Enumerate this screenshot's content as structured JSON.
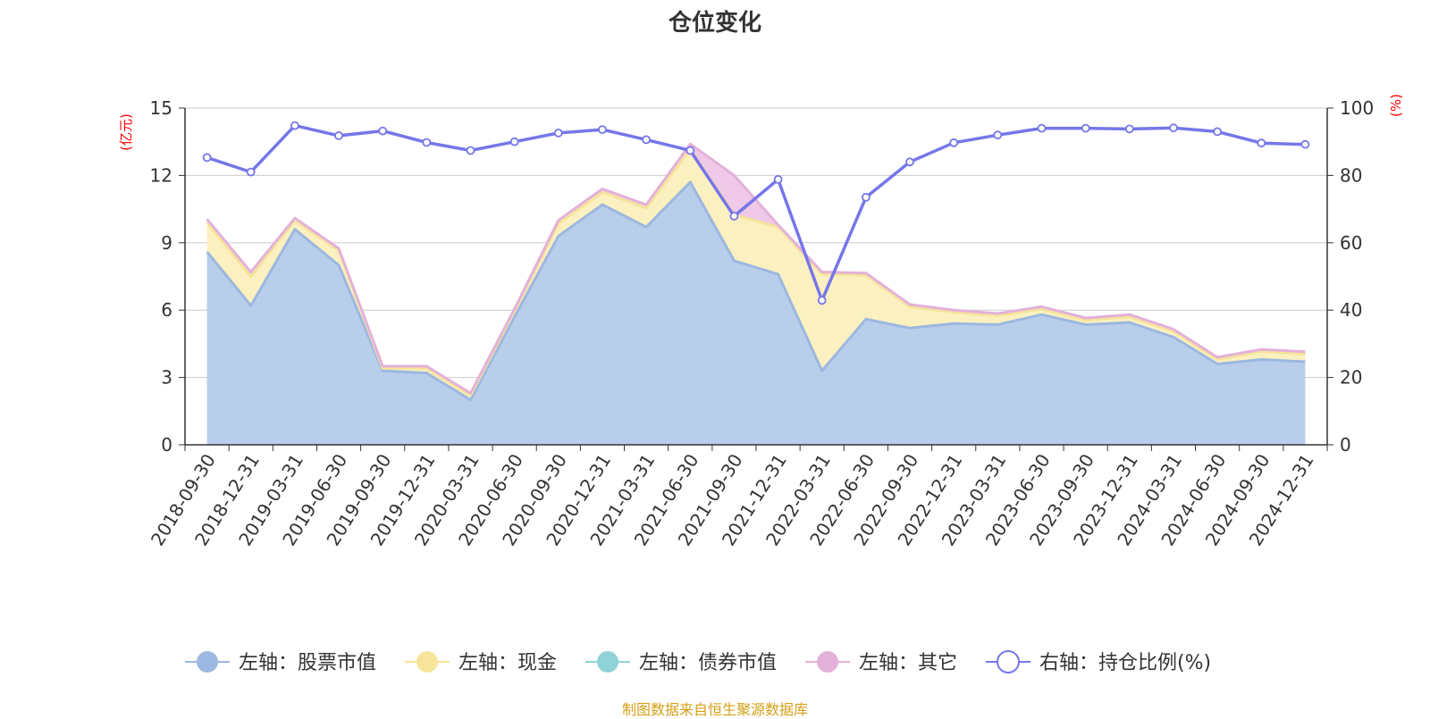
{
  "chart_data": {
    "type": "area",
    "title": "仓位变化",
    "ylabel_left": "(亿元)",
    "ylabel_right": "(%)",
    "ylim_left": [
      0,
      15
    ],
    "yticks_left": [
      0,
      3,
      6,
      9,
      12,
      15
    ],
    "ylim_right": [
      0,
      100
    ],
    "yticks_right": [
      0,
      20,
      40,
      60,
      80,
      100
    ],
    "grid": true,
    "legend_position": "bottom",
    "categories": [
      "2018-09-30",
      "2018-12-31",
      "2019-03-31",
      "2019-06-30",
      "2019-09-30",
      "2019-12-31",
      "2020-03-31",
      "2020-06-30",
      "2020-09-30",
      "2020-12-31",
      "2021-03-31",
      "2021-06-30",
      "2021-09-30",
      "2021-12-31",
      "2022-03-31",
      "2022-06-30",
      "2022-09-30",
      "2022-12-31",
      "2023-03-31",
      "2023-06-30",
      "2023-09-30",
      "2023-12-31",
      "2024-03-31",
      "2024-06-30",
      "2024-09-30",
      "2024-12-31"
    ],
    "x_tick_labels": [
      "2018-09-30",
      "2018-12-31",
      "2019-03-31",
      "2019-06-30",
      "2019-09-30",
      "2019-12-31",
      "2020-03-31",
      "2020-06-30",
      "2020-09-30",
      "2020-12-31",
      "2021-03-31",
      "2021-06-30",
      "2021-09-30",
      "2021-12-31",
      "2022-03-31",
      "2022-06-30",
      "2022-09-30",
      "2022-12-31",
      "2023-03-31",
      "2023-06-30",
      "2023-09-30",
      "2023-12-31",
      "2024-03-31",
      "2024-06-30",
      "2024-09-30",
      "2024-12-31"
    ],
    "series": [
      {
        "name": "左轴：股票市值",
        "axis": "left",
        "stack": true,
        "color": "#9cb8e0",
        "fill": "#b8ceeb",
        "values": [
          8.6,
          6.2,
          9.6,
          8.0,
          3.3,
          3.2,
          2.0,
          5.7,
          9.3,
          10.7,
          9.7,
          11.7,
          8.2,
          7.6,
          3.3,
          5.6,
          5.2,
          5.4,
          5.35,
          5.8,
          5.35,
          5.45,
          4.8,
          3.6,
          3.8,
          3.7
        ]
      },
      {
        "name": "左轴：现金",
        "axis": "left",
        "stack": true,
        "color": "#f5e49a",
        "fill": "#fbf0bf",
        "values": [
          1.3,
          1.3,
          0.4,
          0.65,
          0.1,
          0.2,
          0.2,
          0.25,
          0.55,
          0.55,
          0.85,
          1.45,
          2.05,
          2.1,
          4.3,
          1.95,
          0.95,
          0.5,
          0.4,
          0.25,
          0.2,
          0.25,
          0.25,
          0.2,
          0.35,
          0.35
        ]
      },
      {
        "name": "左轴：债券市值",
        "axis": "left",
        "stack": true,
        "color": "#8fd3d6",
        "fill": "#c6e9ea",
        "values": [
          0,
          0,
          0,
          0,
          0,
          0,
          0,
          0,
          0,
          0,
          0,
          0,
          0,
          0,
          0,
          0,
          0,
          0,
          0,
          0,
          0,
          0,
          0,
          0,
          0,
          0
        ]
      },
      {
        "name": "左轴：其它",
        "axis": "left",
        "stack": true,
        "color": "#e3b1d9",
        "fill": "#efc9e7",
        "values": [
          0.15,
          0.2,
          0.1,
          0.1,
          0.1,
          0.1,
          0.1,
          0.1,
          0.15,
          0.15,
          0.15,
          0.25,
          1.75,
          0.1,
          0.1,
          0.1,
          0.1,
          0.1,
          0.1,
          0.1,
          0.1,
          0.1,
          0.1,
          0.1,
          0.1,
          0.1
        ]
      },
      {
        "name": "右轴：持仓比例(%)",
        "axis": "right",
        "type": "line",
        "color": "#7676ea",
        "values": [
          85.3,
          81.0,
          94.8,
          91.8,
          93.2,
          89.8,
          87.4,
          90.0,
          92.6,
          93.6,
          90.6,
          87.4,
          67.9,
          78.8,
          42.9,
          73.5,
          84.0,
          89.7,
          92.0,
          94.0,
          94.0,
          93.8,
          94.1,
          93.0,
          89.6,
          89.2
        ]
      }
    ],
    "footer": "制图数据来自恒生聚源数据库",
    "colors": {
      "axis": "#333333",
      "grid": "#cccccc",
      "right_axis_label": "#ff0000",
      "footer": "#d4a017"
    }
  }
}
